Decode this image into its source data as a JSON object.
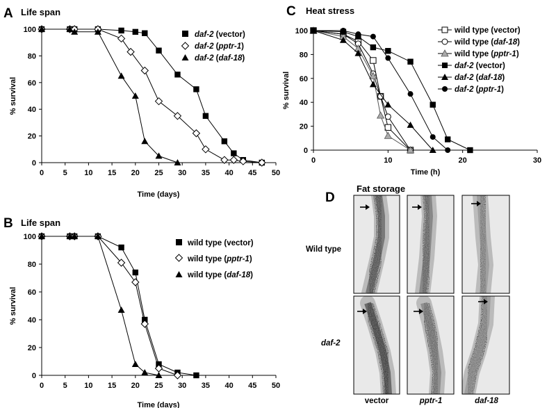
{
  "panel_labels": {
    "A": "A",
    "B": "B",
    "C": "C",
    "D": "D"
  },
  "chart_data": [
    {
      "id": "A",
      "type": "line",
      "title": "Life span",
      "xlabel": "Time (days)",
      "ylabel": "% survival",
      "xlim": [
        0,
        50
      ],
      "ylim": [
        0,
        100
      ],
      "xticks": [
        0,
        5,
        10,
        15,
        20,
        25,
        30,
        35,
        40,
        45,
        50
      ],
      "yticks": [
        0,
        20,
        40,
        60,
        80,
        100
      ],
      "series": [
        {
          "name": "daf-2 (vector)",
          "gene": "daf-2",
          "treatment": "vector",
          "marker": "square-filled",
          "x": [
            0,
            6,
            7,
            12,
            17,
            20,
            22,
            25,
            29,
            33,
            35,
            39,
            41,
            43,
            47
          ],
          "y": [
            100,
            100,
            100,
            100,
            99,
            98,
            97,
            84,
            66,
            55,
            35,
            16,
            7,
            2,
            0
          ]
        },
        {
          "name": "daf-2 (pptr-1)",
          "gene": "daf-2",
          "treatment": "pptr-1",
          "marker": "diamond-open",
          "x": [
            0,
            6,
            7,
            12,
            17,
            19,
            22,
            25,
            29,
            33,
            35,
            39,
            41,
            43,
            47
          ],
          "y": [
            100,
            100,
            100,
            100,
            93,
            83,
            69,
            46,
            35,
            22,
            10,
            2,
            2,
            1,
            0
          ]
        },
        {
          "name": "daf-2 (daf-18)",
          "gene": "daf-2",
          "treatment": "daf-18",
          "marker": "triangle-filled",
          "x": [
            0,
            6,
            7,
            12,
            17,
            20,
            22,
            25,
            29
          ],
          "y": [
            100,
            100,
            98,
            98,
            65,
            50,
            16,
            5,
            0
          ]
        }
      ]
    },
    {
      "id": "B",
      "type": "line",
      "title": "Life span",
      "xlabel": "Time (days)",
      "ylabel": "% survival",
      "xlim": [
        0,
        50
      ],
      "ylim": [
        0,
        100
      ],
      "xticks": [
        0,
        5,
        10,
        15,
        20,
        25,
        30,
        35,
        40,
        45,
        50
      ],
      "yticks": [
        0,
        20,
        40,
        60,
        80,
        100
      ],
      "series": [
        {
          "name": "wild type (vector)",
          "gene": "wild type",
          "treatment": "vector",
          "marker": "square-filled",
          "x": [
            0,
            6,
            7,
            12,
            17,
            20,
            22,
            25,
            29,
            33
          ],
          "y": [
            100,
            100,
            100,
            100,
            92,
            74,
            40,
            8,
            2,
            0
          ]
        },
        {
          "name": "wild type (pptr-1)",
          "gene": "wild type",
          "treatment": "pptr-1",
          "marker": "diamond-open",
          "x": [
            0,
            6,
            7,
            12,
            17,
            20,
            22,
            25,
            29
          ],
          "y": [
            100,
            100,
            100,
            100,
            81,
            67,
            37,
            5,
            0
          ]
        },
        {
          "name": "wild type (daf-18)",
          "gene": "wild type",
          "treatment": "daf-18",
          "marker": "triangle-filled",
          "x": [
            0,
            6,
            7,
            12,
            17,
            20,
            22,
            25
          ],
          "y": [
            100,
            100,
            100,
            100,
            47,
            8,
            2,
            0
          ]
        }
      ]
    },
    {
      "id": "C",
      "type": "line",
      "title": "Heat stress",
      "xlabel": "Time (h)",
      "ylabel": "% survival",
      "xlim": [
        0,
        30
      ],
      "ylim": [
        0,
        100
      ],
      "xticks": [
        0,
        10,
        20,
        30
      ],
      "yticks": [
        0,
        20,
        40,
        60,
        80,
        100
      ],
      "series": [
        {
          "name": "wild type (vector)",
          "gene": "wild type",
          "treatment": "vector",
          "marker": "square-open",
          "x": [
            0,
            4,
            6,
            8,
            9,
            10,
            13
          ],
          "y": [
            100,
            97,
            91,
            75,
            45,
            19,
            0
          ]
        },
        {
          "name": "wild type (daf-18)",
          "gene": "wild type",
          "treatment": "daf-18",
          "marker": "circle-open",
          "x": [
            0,
            4,
            6,
            8,
            9,
            10,
            13
          ],
          "y": [
            100,
            97,
            89,
            64,
            45,
            28,
            0
          ]
        },
        {
          "name": "wild type (pptr-1)",
          "gene": "wild type",
          "treatment": "pptr-1",
          "marker": "triangle-gray",
          "x": [
            0,
            4,
            6,
            8,
            9,
            10,
            13
          ],
          "y": [
            100,
            95,
            85,
            62,
            29,
            12,
            0
          ]
        },
        {
          "name": "daf-2 (vector)",
          "gene": "daf-2",
          "treatment": "vector",
          "marker": "square-filled",
          "x": [
            0,
            4,
            6,
            8,
            10,
            13,
            16,
            18,
            21
          ],
          "y": [
            100,
            99,
            95,
            86,
            83,
            74,
            38,
            9,
            0
          ]
        },
        {
          "name": "daf-2 (daf-18)",
          "gene": "daf-2",
          "treatment": "daf-18",
          "marker": "triangle-filled",
          "x": [
            0,
            4,
            6,
            8,
            10,
            13,
            16
          ],
          "y": [
            100,
            92,
            81,
            55,
            38,
            21,
            0
          ]
        },
        {
          "name": "daf-2 (pptr-1)",
          "gene": "daf-2",
          "treatment": "pptr-1",
          "marker": "circle-filled",
          "x": [
            0,
            4,
            6,
            8,
            10,
            13,
            16,
            18
          ],
          "y": [
            100,
            100,
            97,
            95,
            77,
            47,
            11,
            0
          ]
        }
      ]
    }
  ],
  "fat_storage": {
    "title": "Fat storage",
    "row_labels": [
      "Wild type",
      "daf-2"
    ],
    "column_labels": [
      "vector",
      "pptr-1",
      "daf-18"
    ]
  }
}
